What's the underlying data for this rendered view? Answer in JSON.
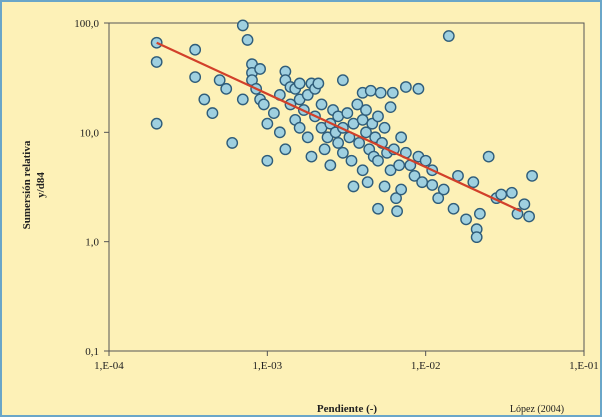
{
  "colors": {
    "background": "#fdf1b7",
    "border": "#6aa6c8",
    "point_fill": "#9fd0e0",
    "point_stroke": "#2f5d7a",
    "trend_line": "#d2402a"
  },
  "chart_data": {
    "type": "scatter",
    "title": "",
    "xlabel": "Pendiente (-)",
    "ylabel_lines": [
      "Sumersión relativa",
      "y/d84"
    ],
    "source_note": "López (2004)",
    "x_scale": "log",
    "y_scale": "log",
    "xlim": [
      0.0001,
      0.1
    ],
    "ylim": [
      0.1,
      100
    ],
    "x_ticks": [
      {
        "value": 0.0001,
        "label": "1,E-04"
      },
      {
        "value": 0.001,
        "label": "1,E-03"
      },
      {
        "value": 0.01,
        "label": "1,E-02"
      },
      {
        "value": 0.1,
        "label": "1,E-01"
      }
    ],
    "y_ticks": [
      {
        "value": 0.1,
        "label": "0,1"
      },
      {
        "value": 1,
        "label": "1,0"
      },
      {
        "value": 10,
        "label": "10,0"
      },
      {
        "value": 100,
        "label": "100,0"
      }
    ],
    "grid": false,
    "trend_line": {
      "x": [
        0.0002,
        0.04
      ],
      "y": [
        66,
        1.9
      ]
    },
    "points": [
      [
        0.0002,
        66
      ],
      [
        0.0002,
        44
      ],
      [
        0.0002,
        12
      ],
      [
        0.00035,
        57
      ],
      [
        0.00035,
        32
      ],
      [
        0.0004,
        20
      ],
      [
        0.00045,
        15
      ],
      [
        0.0005,
        30
      ],
      [
        0.00055,
        25
      ],
      [
        0.0006,
        8
      ],
      [
        0.0007,
        95
      ],
      [
        0.0007,
        20
      ],
      [
        0.00075,
        70
      ],
      [
        0.0008,
        42
      ],
      [
        0.0008,
        35
      ],
      [
        0.0008,
        30
      ],
      [
        0.00085,
        25
      ],
      [
        0.0009,
        38
      ],
      [
        0.0009,
        20
      ],
      [
        0.00095,
        18
      ],
      [
        0.001,
        12
      ],
      [
        0.001,
        5.5
      ],
      [
        0.0011,
        15
      ],
      [
        0.0012,
        22
      ],
      [
        0.0012,
        10
      ],
      [
        0.0013,
        36
      ],
      [
        0.0013,
        30
      ],
      [
        0.0013,
        7
      ],
      [
        0.0014,
        26
      ],
      [
        0.0014,
        18
      ],
      [
        0.0015,
        25
      ],
      [
        0.0015,
        13
      ],
      [
        0.0016,
        28
      ],
      [
        0.0016,
        20
      ],
      [
        0.0016,
        11
      ],
      [
        0.0017,
        16
      ],
      [
        0.0018,
        22
      ],
      [
        0.0018,
        9
      ],
      [
        0.0019,
        28
      ],
      [
        0.0019,
        6
      ],
      [
        0.002,
        25
      ],
      [
        0.002,
        14
      ],
      [
        0.0021,
        28
      ],
      [
        0.0022,
        18
      ],
      [
        0.0022,
        11
      ],
      [
        0.0023,
        7
      ],
      [
        0.0024,
        9
      ],
      [
        0.0025,
        12
      ],
      [
        0.0025,
        5
      ],
      [
        0.0026,
        16
      ],
      [
        0.0027,
        10
      ],
      [
        0.0028,
        14
      ],
      [
        0.0028,
        8
      ],
      [
        0.003,
        30
      ],
      [
        0.003,
        11
      ],
      [
        0.003,
        6.5
      ],
      [
        0.0032,
        15
      ],
      [
        0.0033,
        9
      ],
      [
        0.0034,
        5.5
      ],
      [
        0.0035,
        12
      ],
      [
        0.0035,
        3.2
      ],
      [
        0.0037,
        18
      ],
      [
        0.0038,
        8
      ],
      [
        0.004,
        23
      ],
      [
        0.004,
        13
      ],
      [
        0.004,
        4.5
      ],
      [
        0.0042,
        16
      ],
      [
        0.0042,
        10
      ],
      [
        0.0043,
        3.5
      ],
      [
        0.0044,
        7
      ],
      [
        0.0045,
        24
      ],
      [
        0.0046,
        12
      ],
      [
        0.0047,
        6
      ],
      [
        0.0048,
        9
      ],
      [
        0.005,
        14
      ],
      [
        0.005,
        5.5
      ],
      [
        0.005,
        2
      ],
      [
        0.0052,
        23
      ],
      [
        0.0053,
        8
      ],
      [
        0.0055,
        11
      ],
      [
        0.0055,
        3.2
      ],
      [
        0.0057,
        6.5
      ],
      [
        0.006,
        17
      ],
      [
        0.006,
        4.5
      ],
      [
        0.0062,
        23
      ],
      [
        0.0063,
        7
      ],
      [
        0.0065,
        2.5
      ],
      [
        0.0066,
        1.9
      ],
      [
        0.0068,
        5
      ],
      [
        0.007,
        9
      ],
      [
        0.007,
        3
      ],
      [
        0.0075,
        6.5
      ],
      [
        0.0075,
        26
      ],
      [
        0.008,
        5
      ],
      [
        0.0085,
        4
      ],
      [
        0.009,
        6
      ],
      [
        0.009,
        25
      ],
      [
        0.0095,
        3.5
      ],
      [
        0.01,
        5.5
      ],
      [
        0.011,
        3.3
      ],
      [
        0.011,
        4.5
      ],
      [
        0.012,
        2.5
      ],
      [
        0.013,
        3
      ],
      [
        0.014,
        76
      ],
      [
        0.015,
        2
      ],
      [
        0.016,
        4
      ],
      [
        0.018,
        1.6
      ],
      [
        0.02,
        3.5
      ],
      [
        0.021,
        1.3
      ],
      [
        0.021,
        1.1
      ],
      [
        0.022,
        1.8
      ],
      [
        0.025,
        6
      ],
      [
        0.028,
        2.5
      ],
      [
        0.03,
        2.7
      ],
      [
        0.035,
        2.8
      ],
      [
        0.038,
        1.8
      ],
      [
        0.042,
        2.2
      ],
      [
        0.045,
        1.7
      ],
      [
        0.047,
        4
      ]
    ]
  }
}
